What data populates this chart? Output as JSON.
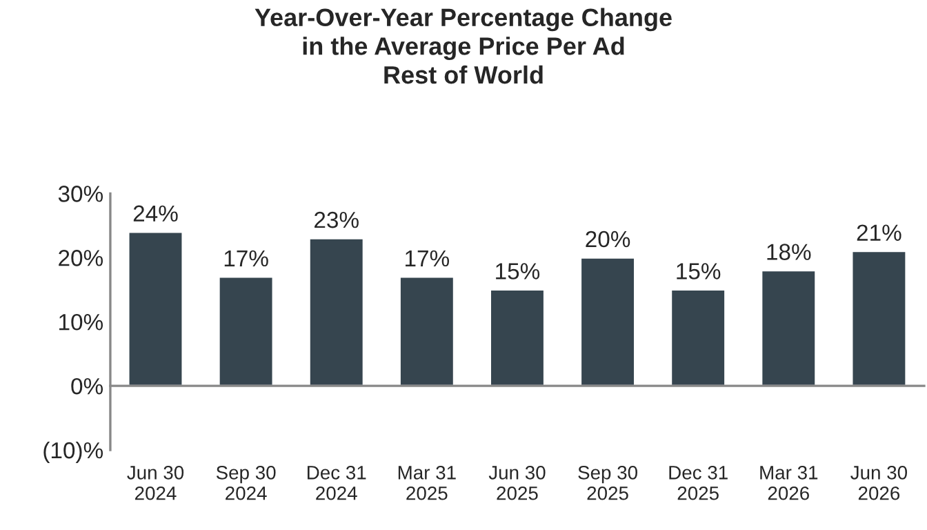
{
  "chart_data": {
    "type": "bar",
    "title": "Year-Over-Year Percentage Change\nin the Average Price Per Ad\nRest of World",
    "categories": [
      "Jun 30\n2024",
      "Sep 30\n2024",
      "Dec 31\n2024",
      "Mar 31\n2025",
      "Jun 30\n2025",
      "Sep 30\n2025",
      "Dec 31\n2025",
      "Mar 31\n2026",
      "Jun 30\n2026"
    ],
    "values": [
      24,
      17,
      23,
      17,
      15,
      20,
      15,
      18,
      21
    ],
    "value_labels": [
      "24%",
      "17%",
      "23%",
      "17%",
      "15%",
      "20%",
      "15%",
      "18%",
      "21%"
    ],
    "color": "#36454f",
    "ylim": [
      -10,
      30
    ],
    "yticks": [
      {
        "value": -10,
        "label": "(10)%"
      },
      {
        "value": 0,
        "label": "0%"
      },
      {
        "value": 10,
        "label": "10%"
      },
      {
        "value": 20,
        "label": "20%"
      },
      {
        "value": 30,
        "label": "30%"
      }
    ],
    "legend": false
  }
}
